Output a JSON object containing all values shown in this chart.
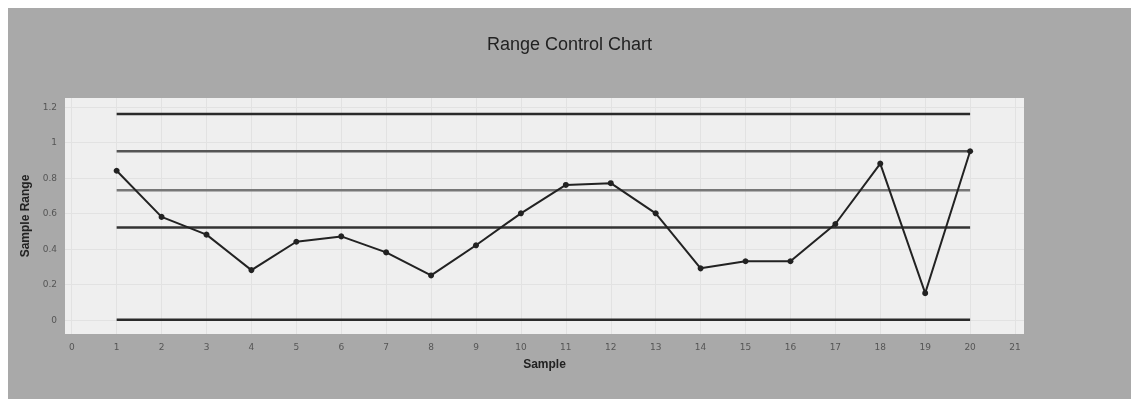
{
  "chart_data": {
    "type": "line",
    "title": "Range Control Chart",
    "xlabel": "Sample",
    "ylabel": "Sample Range",
    "x": [
      1,
      2,
      3,
      4,
      5,
      6,
      7,
      8,
      9,
      10,
      11,
      12,
      13,
      14,
      15,
      16,
      17,
      18,
      19,
      20
    ],
    "series": [
      {
        "color": "#222222",
        "values": [
          0.84,
          0.58,
          0.48,
          0.28,
          0.44,
          0.47,
          0.38,
          0.25,
          0.42,
          0.6,
          0.76,
          0.77,
          0.6,
          0.29,
          0.33,
          0.33,
          0.54,
          0.88,
          0.15,
          0.95
        ]
      }
    ],
    "ref_lines": [
      {
        "axis": "y",
        "value": 1.16,
        "color": "#2a2a2a"
      },
      {
        "axis": "y",
        "value": 0.95,
        "color": "#555555"
      },
      {
        "axis": "y",
        "value": 0.73,
        "color": "#777777"
      },
      {
        "axis": "y",
        "value": 0.52,
        "color": "#333333"
      },
      {
        "axis": "y",
        "value": 0,
        "color": "#2a2a2a"
      }
    ],
    "xlim": [
      -0.15,
      21.2
    ],
    "xticks": [
      0,
      1,
      2,
      3,
      4,
      5,
      6,
      7,
      8,
      9,
      10,
      11,
      12,
      13,
      14,
      15,
      16,
      17,
      18,
      19,
      20,
      21
    ],
    "ylim": [
      -0.08,
      1.25
    ],
    "yticks": [
      0,
      0.2,
      0.4,
      0.6,
      0.8,
      1,
      1.2
    ],
    "grid": true,
    "marker": "circle",
    "line_style": "solid"
  }
}
